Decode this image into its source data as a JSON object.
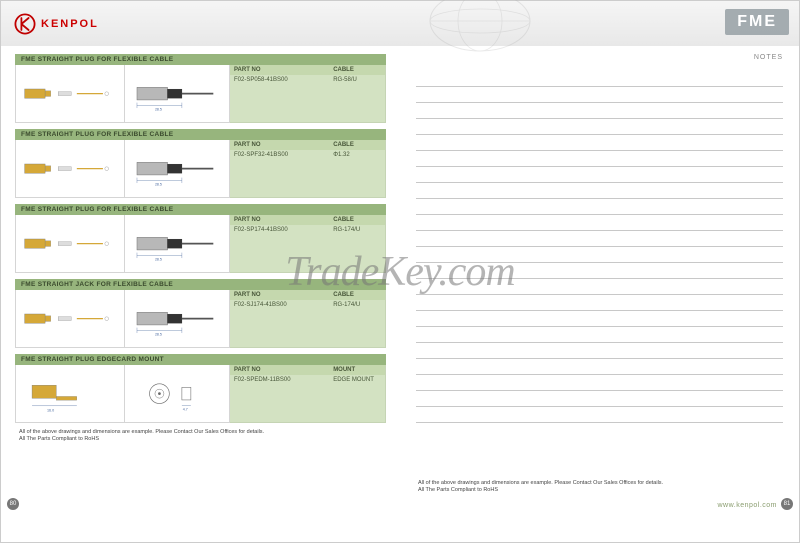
{
  "brand": "KENPOL",
  "brand_color": "#c00000",
  "series": "FME",
  "watermark": "TradeKey.com",
  "website": "www.kenpol.com",
  "notes_label": "NOTES",
  "notes_line_count": 22,
  "page_left": "80",
  "page_right": "81",
  "footer_note": "All of the above drawings and dimensions are example. Please Contact Our Sales Offices for details.\nAll The Parts Compliant to RoHS",
  "spec_header": {
    "col_a": "PART NO",
    "col_b": "CABLE"
  },
  "spec_header_alt": {
    "col_a": "PART NO",
    "col_b": "MOUNT"
  },
  "sections": [
    {
      "title": "FME STRAIGHT PLUG FOR FLEXIBLE CABLE",
      "part_no": "F02-SP058-41BS00",
      "cable": "RG-58/U",
      "col_b_key": "cable"
    },
    {
      "title": "FME STRAIGHT PLUG FOR FLEXIBLE CABLE",
      "part_no": "F02-SPF32-41BS00",
      "cable": "Φ1.32",
      "col_b_key": "cable"
    },
    {
      "title": "FME STRAIGHT PLUG FOR FLEXIBLE CABLE",
      "part_no": "F02-SP174-41BS00",
      "cable": "RG-174/U",
      "col_b_key": "cable"
    },
    {
      "title": "FME STRAIGHT JACK FOR FLEXIBLE CABLE",
      "part_no": "F02-SJ174-41BS00",
      "cable": "RG-174/U",
      "col_b_key": "cable"
    },
    {
      "title": "FME STRAIGHT PLUG EDGECARD MOUNT",
      "part_no": "F02-SPEDM-11BS00",
      "cable": "EDGE MOUNT",
      "col_b_key": "mount"
    }
  ],
  "colors": {
    "section_title_bg": "#97b57d",
    "spec_bg": "#d3e2c2",
    "spec_head_bg": "#c5d8ae",
    "gold": "#d5a838",
    "steel": "#b8b8b8",
    "dim_line": "#4a6aa0"
  }
}
